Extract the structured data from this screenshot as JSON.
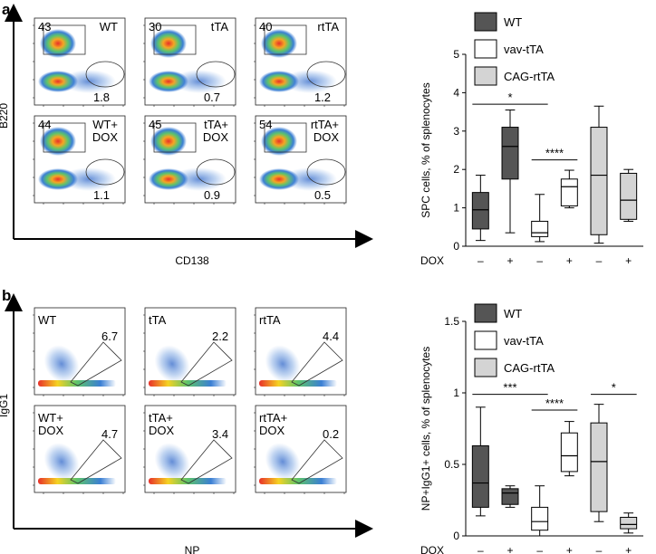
{
  "panels": [
    {
      "letter": "a",
      "flow": {
        "y_label": "B220",
        "x_label": "CD138",
        "plots": [
          {
            "name": "WT",
            "gate_top": "43",
            "gate_bottom": "1.8",
            "shape": "ellipse"
          },
          {
            "name": "tTA",
            "gate_top": "30",
            "gate_bottom": "0.7",
            "shape": "ellipse"
          },
          {
            "name": "rtTA",
            "gate_top": "40",
            "gate_bottom": "1.2",
            "shape": "ellipse"
          },
          {
            "name": "WT+\nDOX",
            "gate_top": "44",
            "gate_bottom": "1.1",
            "shape": "ellipse"
          },
          {
            "name": "tTA+\nDOX",
            "gate_top": "45",
            "gate_bottom": "0.9",
            "shape": "ellipse"
          },
          {
            "name": "rtTA+\nDOX",
            "gate_top": "54",
            "gate_bottom": "0.5",
            "shape": "ellipse"
          }
        ]
      }
    },
    {
      "letter": "b",
      "flow": {
        "y_label": "IgG1",
        "x_label": "NP",
        "plots": [
          {
            "name": "WT",
            "gate_value": "6.7",
            "shape": "polygon"
          },
          {
            "name": "tTA",
            "gate_value": "2.2",
            "shape": "polygon"
          },
          {
            "name": "rtTA",
            "gate_value": "4.4",
            "shape": "polygon"
          },
          {
            "name": "WT+\nDOX",
            "gate_value": "4.7",
            "shape": "polygon"
          },
          {
            "name": "tTA+\nDOX",
            "gate_value": "3.4",
            "shape": "polygon"
          },
          {
            "name": "rtTA+\nDOX",
            "gate_value": "0.2",
            "shape": "polygon"
          }
        ]
      }
    }
  ],
  "legend": [
    {
      "label": "WT",
      "color": "#555555"
    },
    {
      "label": "vav-tTA",
      "color": "#ffffff"
    },
    {
      "label": "CAG-rtTA",
      "color": "#d4d4d4"
    }
  ],
  "dox_row": {
    "label": "DOX",
    "signs": [
      "–",
      "+",
      "–",
      "+",
      "–",
      "+"
    ]
  },
  "chart_data": [
    {
      "type": "box",
      "panel": "a",
      "ylabel": "SPC cells, % of splenocytes",
      "ylim": [
        0,
        5
      ],
      "yticks": [
        "0",
        "1",
        "2",
        "3",
        "4",
        "5"
      ],
      "boxes": [
        {
          "group": "WT",
          "dox": "–",
          "min": 0.15,
          "q1": 0.45,
          "median": 0.95,
          "q3": 1.4,
          "max": 1.85
        },
        {
          "group": "WT",
          "dox": "+",
          "min": 0.35,
          "q1": 1.75,
          "median": 2.6,
          "q3": 3.1,
          "max": 3.55
        },
        {
          "group": "vav-tTA",
          "dox": "–",
          "min": 0.12,
          "q1": 0.25,
          "median": 0.35,
          "q3": 0.65,
          "max": 1.35
        },
        {
          "group": "vav-tTA",
          "dox": "+",
          "min": 1.0,
          "q1": 1.05,
          "median": 1.55,
          "q3": 1.75,
          "max": 1.98
        },
        {
          "group": "CAG-rtTA",
          "dox": "–",
          "min": 0.08,
          "q1": 0.3,
          "median": 1.85,
          "q3": 3.1,
          "max": 3.65
        },
        {
          "group": "CAG-rtTA",
          "dox": "+",
          "min": 0.65,
          "q1": 0.7,
          "median": 1.2,
          "q3": 1.9,
          "max": 2.0
        }
      ],
      "significance": [
        {
          "label": "*",
          "from": 0,
          "to": 2,
          "y": 3.7
        },
        {
          "label": "****",
          "from": 2,
          "to": 3,
          "y": 2.25
        }
      ]
    },
    {
      "type": "box",
      "panel": "b",
      "ylabel": "NP+IgG1+ cells, % of splenocytes",
      "ylim": [
        0,
        1.5
      ],
      "yticks": [
        "0",
        "0.5",
        "1",
        "1.5"
      ],
      "boxes": [
        {
          "group": "WT",
          "dox": "–",
          "min": 0.14,
          "q1": 0.2,
          "median": 0.37,
          "q3": 0.63,
          "max": 0.9
        },
        {
          "group": "WT",
          "dox": "+",
          "min": 0.2,
          "q1": 0.22,
          "median": 0.3,
          "q3": 0.33,
          "max": 0.35
        },
        {
          "group": "vav-tTA",
          "dox": "–",
          "min": 0.0,
          "q1": 0.04,
          "median": 0.1,
          "q3": 0.2,
          "max": 0.35
        },
        {
          "group": "vav-tTA",
          "dox": "+",
          "min": 0.42,
          "q1": 0.45,
          "median": 0.56,
          "q3": 0.72,
          "max": 0.8
        },
        {
          "group": "CAG-rtTA",
          "dox": "–",
          "min": 0.1,
          "q1": 0.17,
          "median": 0.52,
          "q3": 0.79,
          "max": 0.92
        },
        {
          "group": "CAG-rtTA",
          "dox": "+",
          "min": 0.02,
          "q1": 0.05,
          "median": 0.08,
          "q3": 0.13,
          "max": 0.16
        }
      ],
      "significance": [
        {
          "label": "***",
          "from": 0,
          "to": 2,
          "y": 0.99
        },
        {
          "label": "****",
          "from": 2,
          "to": 3,
          "y": 0.88
        },
        {
          "label": "*",
          "from": 4,
          "to": 5,
          "y": 0.99
        }
      ]
    }
  ]
}
